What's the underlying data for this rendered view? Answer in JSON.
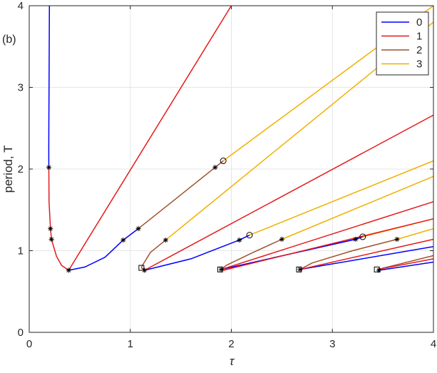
{
  "chart_data": {
    "type": "line",
    "panel_label": "(b)",
    "title": "",
    "xlabel": "τ",
    "ylabel": "period, T",
    "xlim": [
      0,
      4
    ],
    "ylim": [
      0,
      4
    ],
    "xticks": [
      "0",
      "1",
      "2",
      "3",
      "4"
    ],
    "yticks": [
      "0",
      "1",
      "2",
      "3",
      "4"
    ],
    "grid": true,
    "legend_position": "top-right",
    "legend": [
      {
        "label": "0",
        "color": "#0000ff"
      },
      {
        "label": "1",
        "color": "#e6191a"
      },
      {
        "label": "2",
        "color": "#a0522d"
      },
      {
        "label": "3",
        "color": "#f0b000"
      }
    ],
    "series": [
      {
        "group": "0",
        "color": "#0000ff",
        "points": [
          [
            0.2,
            4.0
          ],
          [
            0.196,
            3.0
          ],
          [
            0.194,
            2.5
          ],
          [
            0.193,
            2.2
          ],
          [
            0.194,
            2.02
          ]
        ]
      },
      {
        "group": "1",
        "color": "#e6191a",
        "points": [
          [
            0.194,
            2.02
          ],
          [
            0.196,
            1.6
          ],
          [
            0.21,
            1.27
          ],
          [
            0.22,
            1.14
          ],
          [
            0.27,
            0.93
          ],
          [
            0.32,
            0.82
          ],
          [
            0.39,
            0.76
          ]
        ]
      },
      {
        "group": "1",
        "color": "#e6191a",
        "points": [
          [
            0.39,
            0.76
          ],
          [
            2.0,
            4.0
          ]
        ]
      },
      {
        "group": "0",
        "color": "#0000ff",
        "points": [
          [
            0.39,
            0.76
          ],
          [
            0.55,
            0.8
          ],
          [
            0.75,
            0.92
          ],
          [
            0.93,
            1.13
          ]
        ]
      },
      {
        "group": "0",
        "color": "#0000ff",
        "points": [
          [
            0.93,
            1.13
          ],
          [
            1.08,
            1.27
          ]
        ]
      },
      {
        "group": "2",
        "color": "#a0522d",
        "points": [
          [
            1.08,
            1.27
          ],
          [
            1.84,
            2.02
          ]
        ]
      },
      {
        "group": "2",
        "color": "#a0522d",
        "points": [
          [
            1.84,
            2.02
          ],
          [
            1.92,
            2.1
          ]
        ]
      },
      {
        "group": "3",
        "color": "#f0b000",
        "points": [
          [
            1.92,
            2.1
          ],
          [
            4.0,
            4.0
          ]
        ]
      },
      {
        "group": "2",
        "color": "#a0522d",
        "points": [
          [
            1.35,
            1.13
          ],
          [
            1.2,
            0.98
          ],
          [
            1.12,
            0.82
          ],
          [
            1.11,
            0.79
          ]
        ]
      },
      {
        "group": "3",
        "color": "#f0b000",
        "points": [
          [
            1.35,
            1.13
          ],
          [
            4.0,
            3.8
          ]
        ]
      },
      {
        "group": "2",
        "color": "#a0522d",
        "points": [
          [
            1.11,
            0.79
          ],
          [
            1.14,
            0.76
          ]
        ]
      },
      {
        "group": "0",
        "color": "#0000ff",
        "points": [
          [
            1.14,
            0.76
          ],
          [
            1.6,
            0.9
          ],
          [
            2.08,
            1.13
          ]
        ]
      },
      {
        "group": "0",
        "color": "#0000ff",
        "points": [
          [
            2.08,
            1.13
          ],
          [
            2.18,
            1.19
          ]
        ]
      },
      {
        "group": "3",
        "color": "#f0b000",
        "points": [
          [
            2.18,
            1.19
          ],
          [
            4.0,
            2.1
          ]
        ]
      },
      {
        "group": "1",
        "color": "#e6191a",
        "points": [
          [
            1.14,
            0.76
          ],
          [
            4.0,
            2.66
          ]
        ]
      },
      {
        "group": "3",
        "color": "#f0b000",
        "points": [
          [
            2.5,
            1.14
          ],
          [
            4.0,
            1.91
          ]
        ]
      },
      {
        "group": "2",
        "color": "#a0522d",
        "points": [
          [
            2.5,
            1.14
          ],
          [
            2.2,
            0.97
          ],
          [
            1.95,
            0.82
          ],
          [
            1.9,
            0.77
          ]
        ]
      },
      {
        "group": "0",
        "color": "#0000ff",
        "points": [
          [
            1.9,
            0.77
          ],
          [
            3.23,
            1.14
          ]
        ]
      },
      {
        "group": "0",
        "color": "#0000ff",
        "points": [
          [
            3.23,
            1.14
          ],
          [
            3.3,
            1.17
          ]
        ]
      },
      {
        "group": "3",
        "color": "#f0b000",
        "points": [
          [
            3.3,
            1.17
          ],
          [
            4.0,
            1.39
          ]
        ]
      },
      {
        "group": "1",
        "color": "#e6191a",
        "points": [
          [
            1.9,
            0.77
          ],
          [
            4.0,
            1.6
          ]
        ]
      },
      {
        "group": "1",
        "color": "#e6191a",
        "points": [
          [
            1.92,
            0.76
          ],
          [
            4.0,
            1.39
          ]
        ]
      },
      {
        "group": "3",
        "color": "#f0b000",
        "points": [
          [
            3.64,
            1.14
          ],
          [
            4.0,
            1.27
          ]
        ]
      },
      {
        "group": "2",
        "color": "#a0522d",
        "points": [
          [
            3.64,
            1.14
          ],
          [
            3.2,
            1.0
          ],
          [
            2.8,
            0.85
          ],
          [
            2.68,
            0.77
          ]
        ]
      },
      {
        "group": "0",
        "color": "#0000ff",
        "points": [
          [
            2.68,
            0.77
          ],
          [
            4.0,
            1.05
          ]
        ]
      },
      {
        "group": "1",
        "color": "#e6191a",
        "points": [
          [
            2.68,
            0.77
          ],
          [
            4.0,
            1.14
          ]
        ]
      },
      {
        "group": "2",
        "color": "#a0522d",
        "points": [
          [
            3.45,
            0.77
          ],
          [
            4.0,
            0.94
          ]
        ]
      },
      {
        "group": "1",
        "color": "#e6191a",
        "points": [
          [
            3.45,
            0.77
          ],
          [
            4.0,
            0.9
          ]
        ]
      },
      {
        "group": "0",
        "color": "#0000ff",
        "points": [
          [
            3.46,
            0.76
          ],
          [
            4.0,
            0.86
          ]
        ]
      }
    ],
    "asterisk_markers": [
      [
        0.194,
        2.02
      ],
      [
        0.21,
        1.27
      ],
      [
        0.22,
        1.14
      ],
      [
        0.39,
        0.76
      ],
      [
        0.93,
        1.13
      ],
      [
        1.08,
        1.27
      ],
      [
        1.84,
        2.02
      ],
      [
        1.35,
        1.13
      ],
      [
        1.14,
        0.76
      ],
      [
        2.08,
        1.13
      ],
      [
        2.5,
        1.14
      ],
      [
        1.9,
        0.77
      ],
      [
        3.23,
        1.14
      ],
      [
        3.64,
        1.14
      ],
      [
        2.68,
        0.77
      ],
      [
        3.46,
        0.76
      ]
    ],
    "circle_markers": [
      [
        1.92,
        2.1
      ],
      [
        2.18,
        1.19
      ],
      [
        3.3,
        1.17
      ]
    ],
    "square_markers": [
      [
        1.11,
        0.79
      ],
      [
        1.89,
        0.77
      ],
      [
        2.67,
        0.77
      ],
      [
        3.44,
        0.77
      ]
    ]
  }
}
